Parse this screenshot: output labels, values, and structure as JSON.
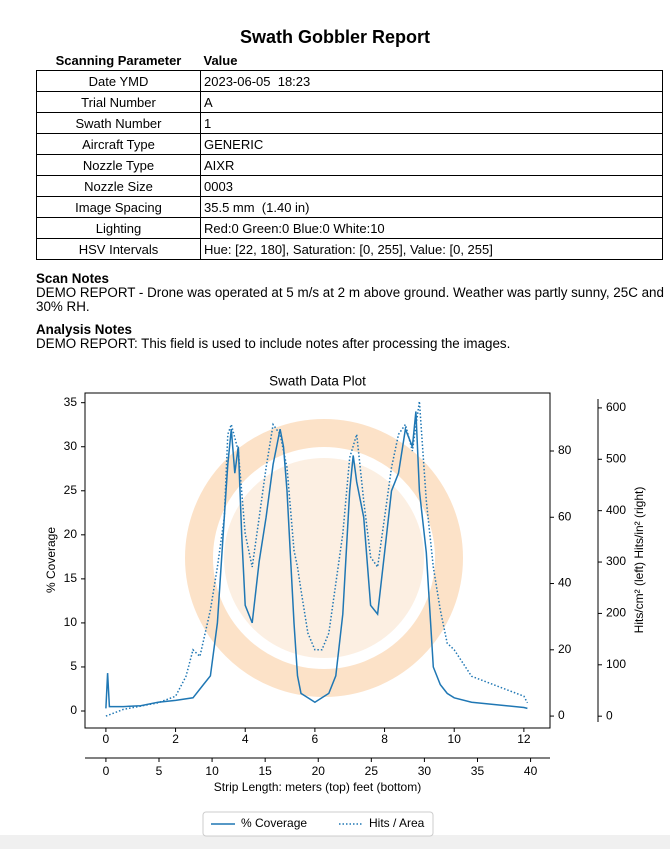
{
  "header": {
    "title": "Swath Gobbler Report"
  },
  "table": {
    "header": [
      "Scanning Parameter",
      "Value"
    ],
    "rows": [
      [
        "Date YMD",
        "2023-06-05  18:23"
      ],
      [
        "Trial Number",
        "A"
      ],
      [
        "Swath Number",
        "1"
      ],
      [
        "Aircraft Type",
        "GENERIC"
      ],
      [
        "Nozzle Type",
        "AIXR"
      ],
      [
        "Nozzle Size",
        "0003"
      ],
      [
        "Image Spacing",
        "35.5 mm  (1.40 in)"
      ],
      [
        "Lighting",
        "Red:0 Green:0 Blue:0 White:10"
      ],
      [
        "HSV Intervals",
        "Hue: [22, 180], Saturation: [0, 255], Value: [0, 255]"
      ]
    ]
  },
  "notes": [
    {
      "heading": "Scan Notes",
      "text": "DEMO REPORT - Drone was operated at 5 m/s at 2 m above ground.  Weather was partly sunny, 25C and 30% RH."
    },
    {
      "heading": "Analysis Notes",
      "text": "DEMO REPORT: This field is used to include notes after processing the images."
    }
  ],
  "chart_data": {
    "type": "line",
    "title": "Swath Data Plot",
    "ylabel": "% Coverage",
    "y2label": "Hits/cm² (left)  Hits/in² (right)",
    "xlabel": "Strip Length: meters (top)   feet (bottom)",
    "xlim": [
      -0.6,
      12.75
    ],
    "xticks": [
      0,
      2,
      4,
      6,
      8,
      10,
      12
    ],
    "x2lim": [
      -1.97,
      41.83
    ],
    "x2ticks": [
      0,
      5,
      10,
      15,
      20,
      25,
      30,
      35,
      40
    ],
    "ylim": [
      -1.93,
      36.1
    ],
    "yticks": [
      0,
      5,
      10,
      15,
      20,
      25,
      30,
      35
    ],
    "y2lim": [
      -3.6,
      97.5
    ],
    "y2ticks": [
      0,
      20,
      40,
      60,
      80
    ],
    "y3lim": [
      -23,
      629
    ],
    "y3ticks": [
      0,
      100,
      200,
      300,
      400,
      500,
      600
    ],
    "legend": "bottom",
    "series": [
      {
        "name": "% Coverage",
        "color": "#1f77b4",
        "style": "solid",
        "x": [
          0,
          0.05,
          0.1,
          0.5,
          1,
          1.5,
          2,
          2.5,
          2.8,
          3,
          3.2,
          3.4,
          3.5,
          3.6,
          3.7,
          3.8,
          3.9,
          4,
          4.2,
          4.4,
          4.6,
          4.8,
          5,
          5.1,
          5.2,
          5.4,
          5.5,
          5.6,
          5.8,
          6,
          6.2,
          6.4,
          6.6,
          6.8,
          7,
          7.1,
          7.2,
          7.4,
          7.6,
          7.8,
          8,
          8.2,
          8.4,
          8.6,
          8.8,
          8.9,
          9,
          9.2,
          9.4,
          9.6,
          9.8,
          10,
          10.5,
          11,
          11.5,
          12,
          12.1
        ],
        "values": [
          0.3,
          4.3,
          0.5,
          0.5,
          0.6,
          1,
          1.2,
          1.5,
          3,
          4,
          10,
          22,
          28,
          32,
          27,
          30,
          20,
          12,
          10,
          17,
          22,
          28,
          32,
          30,
          25,
          10,
          4,
          2,
          1.5,
          1,
          1.5,
          2,
          4,
          11,
          25,
          29,
          26,
          22,
          12,
          11,
          18,
          25,
          27,
          32,
          30,
          34,
          25,
          18,
          5,
          3,
          2,
          1.5,
          1,
          0.8,
          0.6,
          0.4,
          0.3
        ]
      },
      {
        "name": "Hits / Area",
        "color": "#1f77b4",
        "style": "dotted",
        "axis": "y2",
        "x": [
          0,
          0.5,
          1,
          1.5,
          2,
          2.3,
          2.5,
          2.7,
          3,
          3.2,
          3.4,
          3.5,
          3.6,
          3.8,
          4,
          4.2,
          4.4,
          4.6,
          4.8,
          5,
          5.2,
          5.4,
          5.5,
          5.6,
          5.8,
          6,
          6.2,
          6.4,
          6.6,
          6.8,
          7,
          7.2,
          7.4,
          7.6,
          7.8,
          8,
          8.2,
          8.4,
          8.6,
          8.8,
          9,
          9.2,
          9.4,
          9.6,
          9.8,
          10,
          10.5,
          11,
          11.5,
          12,
          12.1
        ],
        "values": [
          0,
          2,
          3,
          4,
          6,
          12,
          20,
          18,
          32,
          45,
          60,
          85,
          88,
          80,
          55,
          45,
          60,
          75,
          88,
          85,
          75,
          50,
          45,
          38,
          25,
          20,
          20,
          25,
          40,
          55,
          78,
          85,
          65,
          48,
          45,
          60,
          75,
          85,
          88,
          80,
          95,
          65,
          45,
          32,
          22,
          20,
          12,
          10,
          8,
          6,
          4
        ]
      }
    ]
  }
}
